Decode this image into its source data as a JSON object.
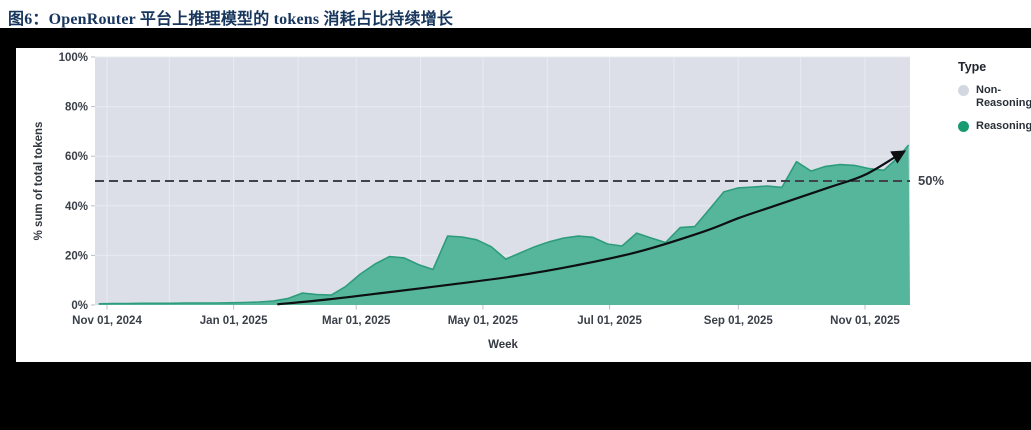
{
  "title": "图6：OpenRouter 平台上推理模型的 tokens 消耗占比持续增长",
  "title_color": "#17365d",
  "chart_data": {
    "type": "area",
    "title": "",
    "xlabel": "Week",
    "ylabel": "% sum of total tokens",
    "ylim": [
      0,
      100
    ],
    "x_range": [
      "2024-10-28",
      "2025-11-22"
    ],
    "grid": "monthly vertical lines, horizontal lines every 20%",
    "legend_position": "right",
    "legend": {
      "title": "Type",
      "items": [
        {
          "label": "Non-Reasoning",
          "color": "#d3d7df"
        },
        {
          "label": "Reasoning",
          "color": "#189a70"
        }
      ]
    },
    "y_ticks": [
      {
        "value": 100,
        "label": "100%"
      },
      {
        "value": 80,
        "label": "80%"
      },
      {
        "value": 60,
        "label": "60%"
      },
      {
        "value": 40,
        "label": "40%"
      },
      {
        "value": 20,
        "label": "20%"
      },
      {
        "value": 0,
        "label": "0%"
      }
    ],
    "x_ticks": [
      {
        "date": "2024-11-01",
        "label": "Nov 01, 2024"
      },
      {
        "date": "2025-01-01",
        "label": "Jan 01, 2025"
      },
      {
        "date": "2025-03-01",
        "label": "Mar 01, 2025"
      },
      {
        "date": "2025-05-01",
        "label": "May 01, 2025"
      },
      {
        "date": "2025-07-01",
        "label": "Jul 01, 2025"
      },
      {
        "date": "2025-09-01",
        "label": "Sep 01, 2025"
      },
      {
        "date": "2025-11-01",
        "label": "Nov 01, 2025"
      }
    ],
    "series": [
      {
        "name": "Reasoning",
        "fill_color": "#56b69c",
        "line_color": "#2d9c7c",
        "x": [
          "2024-10-28",
          "2024-11-04",
          "2024-11-11",
          "2024-11-18",
          "2024-11-25",
          "2024-12-02",
          "2024-12-09",
          "2024-12-16",
          "2024-12-23",
          "2024-12-30",
          "2025-01-06",
          "2025-01-13",
          "2025-01-20",
          "2025-01-27",
          "2025-02-03",
          "2025-02-10",
          "2025-02-17",
          "2025-02-24",
          "2025-03-03",
          "2025-03-10",
          "2025-03-17",
          "2025-03-24",
          "2025-03-31",
          "2025-04-07",
          "2025-04-14",
          "2025-04-21",
          "2025-04-28",
          "2025-05-05",
          "2025-05-12",
          "2025-05-19",
          "2025-05-26",
          "2025-06-02",
          "2025-06-09",
          "2025-06-16",
          "2025-06-23",
          "2025-06-30",
          "2025-07-07",
          "2025-07-14",
          "2025-07-21",
          "2025-07-28",
          "2025-08-04",
          "2025-08-11",
          "2025-08-18",
          "2025-08-25",
          "2025-09-01",
          "2025-09-08",
          "2025-09-15",
          "2025-09-22",
          "2025-09-29",
          "2025-10-06",
          "2025-10-13",
          "2025-10-20",
          "2025-10-27",
          "2025-11-03",
          "2025-11-10",
          "2025-11-17",
          "2025-11-22"
        ],
        "values": [
          0.5,
          0.6,
          0.6,
          0.7,
          0.7,
          0.7,
          0.8,
          0.8,
          0.8,
          0.9,
          1.0,
          1.2,
          1.6,
          2.6,
          4.8,
          4.2,
          4.0,
          7.5,
          12.5,
          16.5,
          19.5,
          19.0,
          16.3,
          14.3,
          27.8,
          27.4,
          26.3,
          23.5,
          18.5,
          21.0,
          23.5,
          25.5,
          27.0,
          27.8,
          27.3,
          24.6,
          23.8,
          29.0,
          27.0,
          25.2,
          31.2,
          31.6,
          38.5,
          45.6,
          47.2,
          47.6,
          48.0,
          47.4,
          57.8,
          54.0,
          55.9,
          56.6,
          56.3,
          55.0,
          54.3,
          59.5,
          64.5
        ]
      },
      {
        "name": "Non-Reasoning",
        "fill_color": "#dcdfe8",
        "values_note": "complement of Reasoning to 100% (shown as the gray background region)"
      }
    ],
    "trend_line": {
      "name": "growth trend arrow",
      "color": "#0d0f11",
      "x": [
        "2025-01-22",
        "2025-02-15",
        "2025-03-15",
        "2025-04-15",
        "2025-05-15",
        "2025-06-15",
        "2025-07-15",
        "2025-08-15",
        "2025-09-01",
        "2025-09-15",
        "2025-10-15",
        "2025-11-01",
        "2025-11-19"
      ],
      "values": [
        0.3,
        2.2,
        5.0,
        8.2,
        11.5,
        16.0,
        21.5,
        29.5,
        35.0,
        39.0,
        47.5,
        52.5,
        61.5
      ]
    },
    "reference_line": {
      "value": 50,
      "label": "50%",
      "style": "dashed",
      "color": "#3f444c"
    }
  },
  "plot_colors": {
    "background": "#dcdfe8",
    "gridline": "#e8ebf1",
    "tick": "#b9bec8",
    "axis_text": "#3a3f48"
  }
}
